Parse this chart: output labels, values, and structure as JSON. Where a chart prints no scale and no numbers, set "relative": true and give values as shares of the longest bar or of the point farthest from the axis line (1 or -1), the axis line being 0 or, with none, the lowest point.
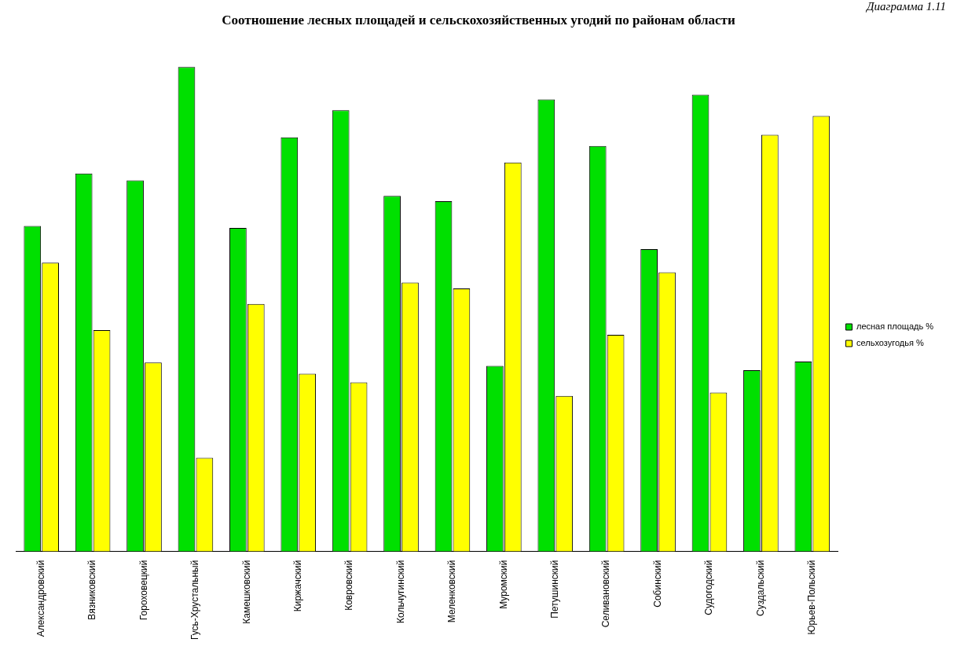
{
  "chart_data": {
    "type": "bar",
    "title": "Соотношение лесных площадей и сельскохозяйственных угодий по районам области",
    "annotations": [
      "Диаграмма 1.11"
    ],
    "categories": [
      "Александровский",
      "Вязниковский",
      "Гороховецкий",
      "Гусь-Хрустальный",
      "Камешковский",
      "Киржачский",
      "Ковровский",
      "Кольчугинский",
      "Меленковский",
      "Муромский",
      "Петушинский",
      "Селивановский",
      "Собинский",
      "Судогодский",
      "Суздальский",
      "Юрьев-Польский"
    ],
    "relative": true,
    "legend": "right",
    "series": [
      {
        "name": "лесная площадь %",
        "color": "#00e000",
        "values": [
          0.672,
          0.78,
          0.766,
          1,
          0.668,
          0.855,
          0.911,
          0.734,
          0.723,
          0.383,
          0.933,
          0.837,
          0.624,
          0.943,
          0.374,
          0.392
        ]
      },
      {
        "name": "сельхозугодья %",
        "color": "#ffff00",
        "values": [
          0.596,
          0.457,
          0.39,
          0.193,
          0.511,
          0.367,
          0.349,
          0.555,
          0.543,
          0.803,
          0.321,
          0.447,
          0.576,
          0.328,
          0.86,
          0.899
        ]
      }
    ]
  }
}
